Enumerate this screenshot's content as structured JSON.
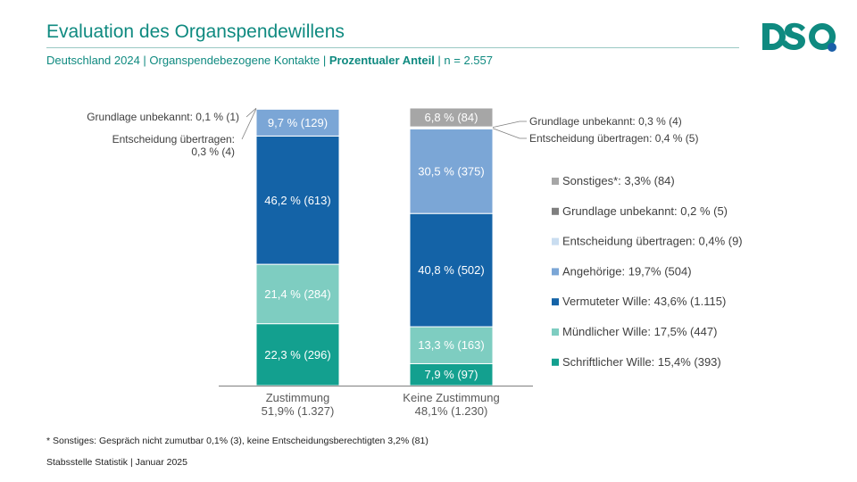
{
  "header": {
    "title": "Evaluation des Organspendewillens",
    "subtitle_pre": "Deutschland 2024 | Organspendebezogene Kontakte | ",
    "subtitle_bold": "Prozentualer Anteil",
    "subtitle_post": " | n = 2.557"
  },
  "logo": {
    "text": "DSO",
    "color": "#0f8a80",
    "accent": "#1a5fa8"
  },
  "colors": {
    "Sonstiges": "#a6a6a6",
    "Grundlage unbekannt": "#7f7f7f",
    "Entscheidung übertragen": "#c9ddf0",
    "Angehörige": "#7ba6d6",
    "Vermuteter Wille": "#1463a7",
    "Mündlicher Wille": "#7ecdc1",
    "Schriftlicher Wille": "#13a08f"
  },
  "chart_data": {
    "type": "bar",
    "stacked": true,
    "categories": [
      "Zustimmung",
      "Keine Zustimmung"
    ],
    "category_sublabels": [
      "51,9% (1.327)",
      "48,1% (1.230)"
    ],
    "series": [
      {
        "name": "Schriftlicher Wille",
        "values": [
          22.3,
          7.9
        ],
        "labels": [
          "22,3 % (296)",
          "7,9 % (97)"
        ]
      },
      {
        "name": "Mündlicher Wille",
        "values": [
          21.4,
          13.3
        ],
        "labels": [
          "21,4 % (284)",
          "13,3 % (163)"
        ]
      },
      {
        "name": "Vermuteter Wille",
        "values": [
          46.2,
          40.8
        ],
        "labels": [
          "46,2 % (613)",
          "40,8 % (502)"
        ]
      },
      {
        "name": "Angehörige",
        "values": [
          9.7,
          30.5
        ],
        "labels": [
          "9,7 % (129)",
          "30,5 % (375)"
        ]
      },
      {
        "name": "Entscheidung übertragen",
        "values": [
          0.3,
          0.4
        ],
        "labels": [
          "",
          ""
        ]
      },
      {
        "name": "Grundlage unbekannt",
        "values": [
          0.1,
          0.3
        ],
        "labels": [
          "",
          ""
        ]
      },
      {
        "name": "Sonstiges",
        "values": [
          0,
          6.8
        ],
        "labels": [
          "",
          "6,8 % (84)"
        ]
      }
    ],
    "callouts": [
      {
        "bar": 0,
        "series": "Grundlage unbekannt",
        "side": "left",
        "lines": [
          "Grundlage unbekannt: 0,1 % (1)"
        ]
      },
      {
        "bar": 0,
        "series": "Entscheidung übertragen",
        "side": "left",
        "lines": [
          "Entscheidung übertragen:",
          "0,3 % (4)"
        ]
      },
      {
        "bar": 1,
        "series": "Grundlage unbekannt",
        "side": "right",
        "lines": [
          "Grundlage unbekannt: 0,3 % (4)"
        ]
      },
      {
        "bar": 1,
        "series": "Entscheidung übertragen",
        "side": "right",
        "lines": [
          "Entscheidung übertragen: 0,4 % (5)"
        ]
      }
    ],
    "legend": [
      {
        "series": "Sonstiges",
        "label": "Sonstiges*: 3,3% (84)"
      },
      {
        "series": "Grundlage unbekannt",
        "label": "Grundlage unbekannt: 0,2 % (5)"
      },
      {
        "series": "Entscheidung übertragen",
        "label": "Entscheidung übertragen: 0,4% (9)"
      },
      {
        "series": "Angehörige",
        "label": "Angehörige: 19,7% (504)"
      },
      {
        "series": "Vermuteter Wille",
        "label": "Vermuteter Wille: 43,6% (1.115)"
      },
      {
        "series": "Mündlicher Wille",
        "label": "Mündlicher Wille: 17,5% (447)"
      },
      {
        "series": "Schriftlicher Wille",
        "label": "Schriftlicher Wille: 15,4% (393)"
      }
    ],
    "legend_position": "right",
    "ylim": [
      0,
      100
    ],
    "grid": false
  },
  "footer": {
    "footnote": "* Sonstiges: Gespräch nicht zumutbar 0,1% (3), keine Entscheidungsberechtigten 3,2% (81)",
    "source": "Stabsstelle Statistik | Januar 2025"
  }
}
